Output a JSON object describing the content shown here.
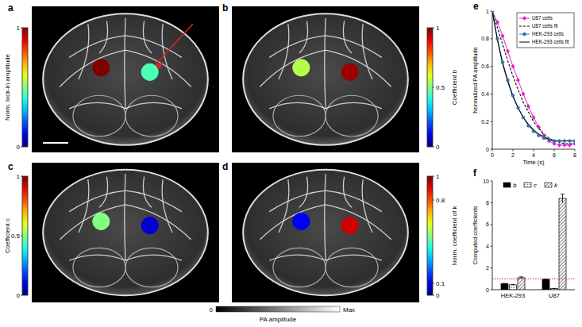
{
  "chart_data": [
    {
      "type": "image",
      "panel": "a",
      "values": [
        1,
        0.45
      ],
      "colorbar": {
        "label": "Norm. lock-in amplitude",
        "lim": [
          0,
          1
        ],
        "ticks": [
          0,
          1
        ]
      }
    },
    {
      "type": "image",
      "panel": "b",
      "values": [
        0.55,
        0.97
      ],
      "colorbar": {
        "label": "Coefficient b",
        "lim": [
          0,
          1
        ],
        "ticks": [
          0,
          0.5,
          1
        ]
      }
    },
    {
      "type": "image",
      "panel": "c",
      "values": [
        0.5,
        0.08
      ],
      "colorbar": {
        "label": "Coefficient c",
        "lim": [
          0,
          1
        ],
        "ticks": [
          0,
          0.5,
          1
        ]
      }
    },
    {
      "type": "image",
      "panel": "d",
      "values": [
        0.12,
        0.92
      ],
      "colorbar": {
        "label": "Norm. coefficient of k",
        "lim": [
          0,
          1
        ],
        "ticks": [
          0,
          0.1,
          0.8,
          1
        ]
      }
    },
    {
      "type": "line",
      "panel": "e",
      "x": [
        0,
        0.5,
        1,
        1.5,
        2,
        2.5,
        3,
        3.5,
        4,
        4.5,
        5,
        5.5,
        6,
        6.5,
        7,
        7.5,
        8
      ],
      "xlim": [
        0,
        8
      ],
      "xticks": [
        0,
        2,
        4,
        6,
        8
      ],
      "ylim": [
        0,
        1
      ],
      "yticks": [
        0,
        0.2,
        0.4,
        0.6,
        0.8,
        1
      ],
      "x_label": "Time (s)",
      "y_label": "Normalized PA amplitude",
      "legend": "upper right",
      "series": [
        {
          "name": "U87 cells",
          "color": "#e020c8",
          "marker": "diamond",
          "line_style": "solid",
          "values": [
            1,
            0.92,
            0.82,
            0.71,
            0.6,
            0.5,
            0.4,
            0.31,
            0.23,
            0.16,
            0.1,
            0.06,
            0.04,
            0.03,
            0.03,
            0.03,
            0.04
          ]
        },
        {
          "name": "U87 cells fit",
          "color": "#000000",
          "line_style": "dashed",
          "values": [
            1,
            0.88,
            0.76,
            0.64,
            0.53,
            0.43,
            0.34,
            0.27,
            0.2,
            0.15,
            0.11,
            0.08,
            0.06,
            0.05,
            0.04,
            0.04,
            0.04
          ]
        },
        {
          "name": "HEK-293 cells",
          "color": "#2a7ab8",
          "marker": "circle",
          "line_style": "solid",
          "values": [
            1,
            0.8,
            0.63,
            0.5,
            0.39,
            0.3,
            0.23,
            0.17,
            0.13,
            0.1,
            0.08,
            0.07,
            0.06,
            0.06,
            0.06,
            0.06,
            0.06
          ]
        },
        {
          "name": "HEK-293 cells fit",
          "color": "#000000",
          "line_style": "solid",
          "values": [
            1,
            0.79,
            0.62,
            0.49,
            0.38,
            0.3,
            0.23,
            0.18,
            0.14,
            0.11,
            0.09,
            0.07,
            0.06,
            0.06,
            0.06,
            0.06,
            0.06
          ]
        }
      ]
    },
    {
      "type": "bar",
      "panel": "f",
      "categories": [
        "HEK-293",
        "U87"
      ],
      "ylim": [
        0,
        10
      ],
      "yticks": [
        0,
        2,
        4,
        6,
        8,
        10
      ],
      "y_label": "Computed coefficients",
      "legend": "top",
      "threshold": 1,
      "series": [
        {
          "name": "b",
          "color": "#000000",
          "values": [
            0.55,
            0.95
          ],
          "errors": [
            0.03,
            0.03
          ]
        },
        {
          "name": "c",
          "color": "#d9d9d9",
          "values": [
            0.45,
            0.1
          ],
          "errors": [
            0.03,
            0.02
          ]
        },
        {
          "name": "k",
          "color": "#ffffff",
          "values": [
            1.1,
            8.4
          ],
          "errors": [
            0.08,
            0.4
          ]
        }
      ]
    }
  ],
  "pa_colorbar": {
    "label": "PA amplitude",
    "labels": [
      "0",
      "Max"
    ]
  }
}
